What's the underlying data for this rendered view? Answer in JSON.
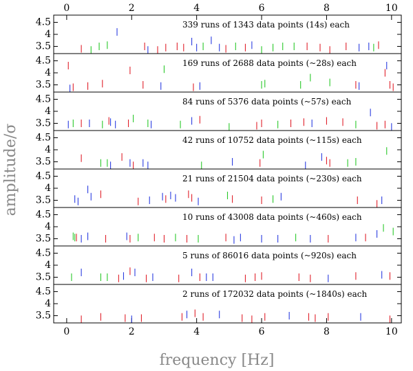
{
  "chart_data": {
    "type": "scatter",
    "xlabel": "frequency [Hz]",
    "ylabel": "amplitude/σ",
    "xlim": [
      -0.4,
      10.3
    ],
    "ylim": [
      3.2,
      4.8
    ],
    "x_ticks": [
      0,
      2,
      4,
      6,
      8,
      10
    ],
    "y_ticks": [
      3.5,
      4,
      4.5
    ],
    "y_tick_labels": [
      "3.5",
      "4",
      "4.5"
    ],
    "colors": {
      "red": "#e0202a",
      "green": "#28c828",
      "blue": "#2a3ce0"
    },
    "panels": [
      {
        "label": "339 runs of 1343 data points (14s) each",
        "marks": [
          {
            "x": 0.45,
            "y": 3.4,
            "c": "red"
          },
          {
            "x": 0.75,
            "y": 3.35,
            "c": "green"
          },
          {
            "x": 1.0,
            "y": 3.5,
            "c": "green"
          },
          {
            "x": 1.25,
            "y": 3.55,
            "c": "green"
          },
          {
            "x": 1.55,
            "y": 4.1,
            "c": "blue"
          },
          {
            "x": 2.4,
            "y": 3.5,
            "c": "red"
          },
          {
            "x": 2.5,
            "y": 3.35,
            "c": "blue"
          },
          {
            "x": 2.8,
            "y": 3.35,
            "c": "red"
          },
          {
            "x": 3.05,
            "y": 3.45,
            "c": "red"
          },
          {
            "x": 3.4,
            "y": 3.5,
            "c": "red"
          },
          {
            "x": 3.6,
            "y": 3.45,
            "c": "red"
          },
          {
            "x": 3.85,
            "y": 3.7,
            "c": "blue"
          },
          {
            "x": 4.0,
            "y": 3.45,
            "c": "blue"
          },
          {
            "x": 4.2,
            "y": 3.5,
            "c": "green"
          },
          {
            "x": 4.45,
            "y": 3.75,
            "c": "blue"
          },
          {
            "x": 4.7,
            "y": 3.45,
            "c": "blue"
          },
          {
            "x": 4.9,
            "y": 3.4,
            "c": "red"
          },
          {
            "x": 5.2,
            "y": 3.5,
            "c": "green"
          },
          {
            "x": 5.5,
            "y": 3.45,
            "c": "red"
          },
          {
            "x": 5.7,
            "y": 3.55,
            "c": "blue"
          },
          {
            "x": 6.0,
            "y": 3.35,
            "c": "green"
          },
          {
            "x": 6.35,
            "y": 3.45,
            "c": "green"
          },
          {
            "x": 6.65,
            "y": 3.5,
            "c": "green"
          },
          {
            "x": 7.0,
            "y": 3.5,
            "c": "green"
          },
          {
            "x": 7.4,
            "y": 3.5,
            "c": "red"
          },
          {
            "x": 7.8,
            "y": 3.45,
            "c": "red"
          },
          {
            "x": 8.1,
            "y": 3.35,
            "c": "red"
          },
          {
            "x": 8.6,
            "y": 3.5,
            "c": "red"
          },
          {
            "x": 9.0,
            "y": 3.45,
            "c": "blue"
          },
          {
            "x": 9.3,
            "y": 3.5,
            "c": "blue"
          },
          {
            "x": 9.45,
            "y": 3.45,
            "c": "green"
          },
          {
            "x": 9.6,
            "y": 3.55,
            "c": "red"
          }
        ]
      },
      {
        "label": "169 runs of 2688 data points (~28s) each",
        "marks": [
          {
            "x": 0.05,
            "y": 4.3,
            "c": "red"
          },
          {
            "x": 0.1,
            "y": 3.35,
            "c": "blue"
          },
          {
            "x": 0.2,
            "y": 3.4,
            "c": "red"
          },
          {
            "x": 0.65,
            "y": 3.45,
            "c": "red"
          },
          {
            "x": 1.1,
            "y": 3.55,
            "c": "red"
          },
          {
            "x": 1.95,
            "y": 4.1,
            "c": "red"
          },
          {
            "x": 2.35,
            "y": 3.5,
            "c": "red"
          },
          {
            "x": 2.9,
            "y": 3.45,
            "c": "blue"
          },
          {
            "x": 3.0,
            "y": 4.15,
            "c": "green"
          },
          {
            "x": 3.9,
            "y": 3.4,
            "c": "red"
          },
          {
            "x": 4.1,
            "y": 3.45,
            "c": "blue"
          },
          {
            "x": 6.0,
            "y": 3.5,
            "c": "green"
          },
          {
            "x": 6.1,
            "y": 3.55,
            "c": "green"
          },
          {
            "x": 7.2,
            "y": 3.5,
            "c": "green"
          },
          {
            "x": 7.5,
            "y": 3.8,
            "c": "green"
          },
          {
            "x": 8.1,
            "y": 3.6,
            "c": "green"
          },
          {
            "x": 8.9,
            "y": 3.5,
            "c": "red"
          },
          {
            "x": 9.0,
            "y": 3.45,
            "c": "blue"
          },
          {
            "x": 9.8,
            "y": 4.0,
            "c": "red"
          },
          {
            "x": 9.85,
            "y": 4.3,
            "c": "blue"
          },
          {
            "x": 9.95,
            "y": 3.5,
            "c": "red"
          },
          {
            "x": 10.05,
            "y": 3.4,
            "c": "red"
          }
        ]
      },
      {
        "label": "84 runs of 5376 data points (~57s) each",
        "marks": [
          {
            "x": 0.05,
            "y": 3.45,
            "c": "blue"
          },
          {
            "x": 0.2,
            "y": 3.5,
            "c": "green"
          },
          {
            "x": 0.45,
            "y": 3.5,
            "c": "red"
          },
          {
            "x": 0.7,
            "y": 3.5,
            "c": "blue"
          },
          {
            "x": 1.1,
            "y": 3.45,
            "c": "green"
          },
          {
            "x": 1.3,
            "y": 3.6,
            "c": "red"
          },
          {
            "x": 1.35,
            "y": 3.55,
            "c": "blue"
          },
          {
            "x": 1.5,
            "y": 3.45,
            "c": "blue"
          },
          {
            "x": 1.9,
            "y": 3.5,
            "c": "red"
          },
          {
            "x": 2.05,
            "y": 3.7,
            "c": "green"
          },
          {
            "x": 2.5,
            "y": 3.5,
            "c": "green"
          },
          {
            "x": 2.6,
            "y": 3.45,
            "c": "blue"
          },
          {
            "x": 3.5,
            "y": 3.45,
            "c": "green"
          },
          {
            "x": 3.85,
            "y": 3.6,
            "c": "blue"
          },
          {
            "x": 4.1,
            "y": 3.65,
            "c": "red"
          },
          {
            "x": 5.0,
            "y": 3.35,
            "c": "green"
          },
          {
            "x": 5.85,
            "y": 3.4,
            "c": "red"
          },
          {
            "x": 6.0,
            "y": 3.5,
            "c": "red"
          },
          {
            "x": 6.5,
            "y": 3.45,
            "c": "green"
          },
          {
            "x": 6.9,
            "y": 3.5,
            "c": "red"
          },
          {
            "x": 7.3,
            "y": 3.55,
            "c": "red"
          },
          {
            "x": 7.55,
            "y": 3.5,
            "c": "blue"
          },
          {
            "x": 8.0,
            "y": 3.6,
            "c": "red"
          },
          {
            "x": 8.5,
            "y": 3.55,
            "c": "red"
          },
          {
            "x": 8.9,
            "y": 3.45,
            "c": "green"
          },
          {
            "x": 9.35,
            "y": 3.95,
            "c": "blue"
          },
          {
            "x": 9.55,
            "y": 3.4,
            "c": "red"
          },
          {
            "x": 9.8,
            "y": 3.45,
            "c": "red"
          },
          {
            "x": 10.0,
            "y": 3.35,
            "c": "blue"
          }
        ]
      },
      {
        "label": "42 runs of 10752 data points (~115s) each",
        "marks": [
          {
            "x": 0.45,
            "y": 3.65,
            "c": "red"
          },
          {
            "x": 1.05,
            "y": 3.45,
            "c": "green"
          },
          {
            "x": 1.25,
            "y": 3.45,
            "c": "green"
          },
          {
            "x": 1.35,
            "y": 3.35,
            "c": "blue"
          },
          {
            "x": 1.7,
            "y": 3.7,
            "c": "red"
          },
          {
            "x": 1.95,
            "y": 3.45,
            "c": "blue"
          },
          {
            "x": 2.05,
            "y": 3.35,
            "c": "red"
          },
          {
            "x": 2.35,
            "y": 3.45,
            "c": "blue"
          },
          {
            "x": 2.5,
            "y": 3.35,
            "c": "blue"
          },
          {
            "x": 4.15,
            "y": 3.35,
            "c": "green"
          },
          {
            "x": 5.1,
            "y": 3.5,
            "c": "blue"
          },
          {
            "x": 5.95,
            "y": 3.45,
            "c": "red"
          },
          {
            "x": 6.05,
            "y": 3.8,
            "c": "green"
          },
          {
            "x": 7.35,
            "y": 3.35,
            "c": "blue"
          },
          {
            "x": 7.85,
            "y": 3.7,
            "c": "blue"
          },
          {
            "x": 8.0,
            "y": 3.55,
            "c": "red"
          },
          {
            "x": 8.1,
            "y": 3.45,
            "c": "red"
          },
          {
            "x": 8.65,
            "y": 3.45,
            "c": "green"
          },
          {
            "x": 8.9,
            "y": 3.5,
            "c": "green"
          },
          {
            "x": 9.85,
            "y": 3.95,
            "c": "green"
          }
        ]
      },
      {
        "label": "21 runs of 21504 data points (~230s) each",
        "marks": [
          {
            "x": 0.25,
            "y": 3.55,
            "c": "blue"
          },
          {
            "x": 0.35,
            "y": 3.45,
            "c": "blue"
          },
          {
            "x": 0.65,
            "y": 3.95,
            "c": "blue"
          },
          {
            "x": 0.75,
            "y": 3.65,
            "c": "blue"
          },
          {
            "x": 1.05,
            "y": 3.75,
            "c": "red"
          },
          {
            "x": 2.2,
            "y": 3.45,
            "c": "red"
          },
          {
            "x": 2.55,
            "y": 3.5,
            "c": "blue"
          },
          {
            "x": 2.95,
            "y": 3.65,
            "c": "blue"
          },
          {
            "x": 3.05,
            "y": 3.55,
            "c": "red"
          },
          {
            "x": 3.2,
            "y": 3.7,
            "c": "blue"
          },
          {
            "x": 3.35,
            "y": 3.6,
            "c": "blue"
          },
          {
            "x": 3.75,
            "y": 3.75,
            "c": "red"
          },
          {
            "x": 3.85,
            "y": 3.6,
            "c": "red"
          },
          {
            "x": 4.05,
            "y": 3.45,
            "c": "blue"
          },
          {
            "x": 4.95,
            "y": 3.7,
            "c": "green"
          },
          {
            "x": 5.1,
            "y": 3.55,
            "c": "red"
          },
          {
            "x": 6.0,
            "y": 3.5,
            "c": "red"
          },
          {
            "x": 6.35,
            "y": 3.55,
            "c": "green"
          },
          {
            "x": 6.6,
            "y": 3.65,
            "c": "blue"
          },
          {
            "x": 8.95,
            "y": 3.5,
            "c": "red"
          },
          {
            "x": 9.55,
            "y": 3.35,
            "c": "red"
          },
          {
            "x": 9.7,
            "y": 3.5,
            "c": "blue"
          }
        ]
      },
      {
        "label": "10 runs of 43008 data points (~460s) each",
        "marks": [
          {
            "x": 0.2,
            "y": 3.6,
            "c": "green"
          },
          {
            "x": 0.25,
            "y": 3.55,
            "c": "green"
          },
          {
            "x": 0.3,
            "y": 3.55,
            "c": "red"
          },
          {
            "x": 0.45,
            "y": 3.5,
            "c": "blue"
          },
          {
            "x": 0.65,
            "y": 3.6,
            "c": "blue"
          },
          {
            "x": 1.2,
            "y": 3.5,
            "c": "red"
          },
          {
            "x": 1.85,
            "y": 3.6,
            "c": "blue"
          },
          {
            "x": 1.95,
            "y": 3.5,
            "c": "red"
          },
          {
            "x": 2.2,
            "y": 3.55,
            "c": "green"
          },
          {
            "x": 2.7,
            "y": 3.55,
            "c": "red"
          },
          {
            "x": 3.0,
            "y": 3.5,
            "c": "red"
          },
          {
            "x": 3.35,
            "y": 3.55,
            "c": "green"
          },
          {
            "x": 3.7,
            "y": 3.5,
            "c": "red"
          },
          {
            "x": 4.05,
            "y": 3.5,
            "c": "green"
          },
          {
            "x": 4.9,
            "y": 3.55,
            "c": "red"
          },
          {
            "x": 5.15,
            "y": 3.45,
            "c": "blue"
          },
          {
            "x": 5.35,
            "y": 3.55,
            "c": "blue"
          },
          {
            "x": 6.0,
            "y": 3.5,
            "c": "blue"
          },
          {
            "x": 6.5,
            "y": 3.5,
            "c": "blue"
          },
          {
            "x": 7.05,
            "y": 3.55,
            "c": "green"
          },
          {
            "x": 7.5,
            "y": 3.5,
            "c": "blue"
          },
          {
            "x": 8.05,
            "y": 3.5,
            "c": "red"
          },
          {
            "x": 8.9,
            "y": 3.55,
            "c": "blue"
          },
          {
            "x": 9.2,
            "y": 3.55,
            "c": "red"
          },
          {
            "x": 9.55,
            "y": 3.7,
            "c": "blue"
          },
          {
            "x": 9.75,
            "y": 3.95,
            "c": "green"
          },
          {
            "x": 10.05,
            "y": 3.8,
            "c": "green"
          }
        ]
      },
      {
        "label": "5 runs of 86016 data points (~920s) each",
        "marks": [
          {
            "x": 0.15,
            "y": 3.5,
            "c": "green"
          },
          {
            "x": 0.45,
            "y": 3.7,
            "c": "blue"
          },
          {
            "x": 1.05,
            "y": 3.5,
            "c": "green"
          },
          {
            "x": 1.25,
            "y": 3.5,
            "c": "green"
          },
          {
            "x": 1.6,
            "y": 3.45,
            "c": "red"
          },
          {
            "x": 1.75,
            "y": 3.55,
            "c": "blue"
          },
          {
            "x": 1.95,
            "y": 3.75,
            "c": "red"
          },
          {
            "x": 2.1,
            "y": 3.7,
            "c": "blue"
          },
          {
            "x": 2.45,
            "y": 3.45,
            "c": "red"
          },
          {
            "x": 2.65,
            "y": 3.5,
            "c": "blue"
          },
          {
            "x": 3.45,
            "y": 3.45,
            "c": "red"
          },
          {
            "x": 3.85,
            "y": 3.7,
            "c": "blue"
          },
          {
            "x": 4.1,
            "y": 3.5,
            "c": "red"
          },
          {
            "x": 4.3,
            "y": 3.5,
            "c": "blue"
          },
          {
            "x": 4.5,
            "y": 3.5,
            "c": "blue"
          },
          {
            "x": 5.5,
            "y": 3.45,
            "c": "red"
          },
          {
            "x": 5.8,
            "y": 3.5,
            "c": "red"
          },
          {
            "x": 6.0,
            "y": 3.55,
            "c": "red"
          },
          {
            "x": 7.15,
            "y": 3.5,
            "c": "red"
          },
          {
            "x": 7.5,
            "y": 3.45,
            "c": "red"
          },
          {
            "x": 8.05,
            "y": 3.45,
            "c": "blue"
          },
          {
            "x": 8.9,
            "y": 3.55,
            "c": "red"
          },
          {
            "x": 9.7,
            "y": 3.6,
            "c": "blue"
          },
          {
            "x": 9.95,
            "y": 3.55,
            "c": "red"
          }
        ]
      },
      {
        "label": "2 runs of 172032 data points (~1840s) each",
        "marks": [
          {
            "x": 0.45,
            "y": 3.35,
            "c": "red"
          },
          {
            "x": 1.05,
            "y": 3.45,
            "c": "red"
          },
          {
            "x": 1.8,
            "y": 3.4,
            "c": "red"
          },
          {
            "x": 2.0,
            "y": 3.35,
            "c": "blue"
          },
          {
            "x": 2.3,
            "y": 3.4,
            "c": "red"
          },
          {
            "x": 3.55,
            "y": 3.45,
            "c": "red"
          },
          {
            "x": 3.7,
            "y": 3.55,
            "c": "blue"
          },
          {
            "x": 3.95,
            "y": 3.6,
            "c": "red"
          },
          {
            "x": 4.2,
            "y": 3.45,
            "c": "red"
          },
          {
            "x": 4.7,
            "y": 3.55,
            "c": "blue"
          },
          {
            "x": 5.4,
            "y": 3.4,
            "c": "red"
          },
          {
            "x": 5.7,
            "y": 3.35,
            "c": "red"
          },
          {
            "x": 6.1,
            "y": 3.45,
            "c": "red"
          },
          {
            "x": 6.85,
            "y": 3.5,
            "c": "blue"
          },
          {
            "x": 7.45,
            "y": 3.45,
            "c": "red"
          },
          {
            "x": 7.65,
            "y": 3.4,
            "c": "red"
          },
          {
            "x": 8.05,
            "y": 3.45,
            "c": "red"
          },
          {
            "x": 9.05,
            "y": 3.45,
            "c": "blue"
          },
          {
            "x": 9.95,
            "y": 3.35,
            "c": "red"
          }
        ]
      }
    ]
  }
}
